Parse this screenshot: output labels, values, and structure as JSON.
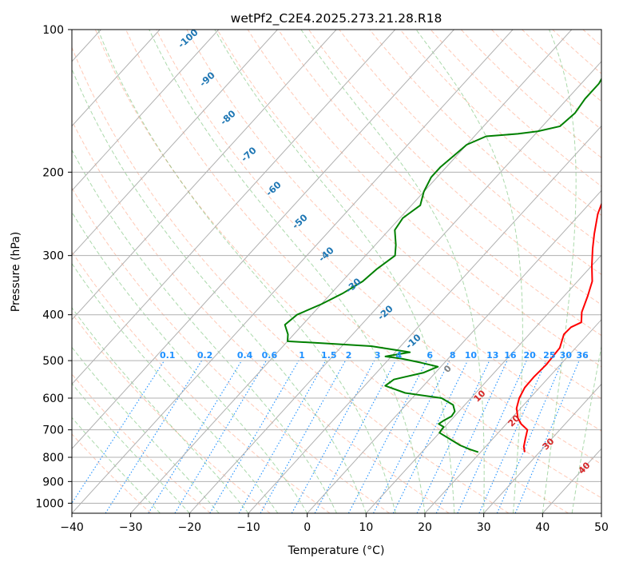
{
  "chart_data": {
    "type": "line",
    "title": "wetPf2_C2E4.2025.273.21.28.R18",
    "xlabel": "Temperature (°C)",
    "ylabel": "Pressure (hPa)",
    "xlim": [
      -40,
      50
    ],
    "ylim": [
      1050,
      100
    ],
    "y_scale": "log",
    "grid": true,
    "x_ticks": [
      "−40",
      "−30",
      "−20",
      "−10",
      "0",
      "10",
      "20",
      "30",
      "40",
      "50"
    ],
    "y_ticks": [
      "100",
      "200",
      "300",
      "400",
      "500",
      "600",
      "700",
      "800",
      "900",
      "1000"
    ],
    "isotherms_skewed": true,
    "colors": {
      "temperature": "#ff0000",
      "dewpoint": "#008000",
      "dry_adiabats": "#ff7f50",
      "moist_adiabats": "#2ca02c",
      "mixing_ratio": "#1e90ff",
      "isotherm_labels": "#1f77b4",
      "moist_labels": "#d62728",
      "grid": "#b0b0b0"
    },
    "series": [
      {
        "key": "temperature",
        "points": [
          [
            27.5,
            780
          ],
          [
            26.5,
            760
          ],
          [
            25.5,
            730
          ],
          [
            24.5,
            700
          ],
          [
            22.5,
            680
          ],
          [
            21.0,
            660
          ],
          [
            19.3,
            630
          ],
          [
            18.2,
            600
          ],
          [
            17.5,
            570
          ],
          [
            17.4,
            540
          ],
          [
            17.6,
            510
          ],
          [
            17.3,
            470
          ],
          [
            15.9,
            440
          ],
          [
            16.0,
            425
          ],
          [
            17.0,
            415
          ],
          [
            15.5,
            395
          ],
          [
            14.0,
            365
          ],
          [
            12.5,
            340
          ],
          [
            10.0,
            315
          ],
          [
            7.5,
            290
          ],
          [
            5.5,
            270
          ],
          [
            3.0,
            245
          ],
          [
            1.0,
            220
          ],
          [
            -1.0,
            200
          ],
          [
            -3.5,
            180
          ],
          [
            -6.0,
            165
          ],
          [
            -8.5,
            150
          ],
          [
            -10.0,
            138
          ],
          [
            -11.8,
            128
          ],
          [
            -12.0,
            120
          ],
          [
            -13.0,
            112
          ],
          [
            -13.2,
            106
          ],
          [
            -12.0,
            102
          ],
          [
            -11.0,
            100
          ]
        ]
      },
      {
        "key": "dewpoint",
        "points": [
          [
            19.6,
            780
          ],
          [
            17.8,
            770
          ],
          [
            15.5,
            755
          ],
          [
            12.5,
            730
          ],
          [
            10.0,
            710
          ],
          [
            9.8,
            690
          ],
          [
            8.5,
            680
          ],
          [
            8.8,
            670
          ],
          [
            9.5,
            655
          ],
          [
            9.3,
            640
          ],
          [
            8.0,
            620
          ],
          [
            5.0,
            600
          ],
          [
            -2.0,
            585
          ],
          [
            -6.5,
            565
          ],
          [
            -6.0,
            548
          ],
          [
            -2.0,
            530
          ],
          [
            -0.5,
            515
          ],
          [
            -4.0,
            505
          ],
          [
            -8.0,
            495
          ],
          [
            -11.0,
            490
          ],
          [
            -7.5,
            480
          ],
          [
            -15.0,
            466
          ],
          [
            -23.0,
            460
          ],
          [
            -30.0,
            455
          ],
          [
            -31.0,
            440
          ],
          [
            -33.0,
            420
          ],
          [
            -32.5,
            400
          ],
          [
            -30.0,
            380
          ],
          [
            -28.0,
            360
          ],
          [
            -26.5,
            340
          ],
          [
            -26.0,
            320
          ],
          [
            -25.0,
            300
          ],
          [
            -26.5,
            285
          ],
          [
            -29.0,
            265
          ],
          [
            -29.5,
            250
          ],
          [
            -28.5,
            235
          ],
          [
            -30.0,
            220
          ],
          [
            -31.0,
            205
          ],
          [
            -31.0,
            195
          ],
          [
            -30.5,
            185
          ],
          [
            -30.0,
            175
          ],
          [
            -28.0,
            168
          ],
          [
            -23.0,
            166
          ],
          [
            -20.0,
            164
          ],
          [
            -17.0,
            160
          ],
          [
            -16.5,
            150
          ],
          [
            -17.0,
            140
          ],
          [
            -17.0,
            130
          ],
          [
            -18.0,
            120
          ],
          [
            -19.0,
            112
          ],
          [
            -18.5,
            106
          ],
          [
            -17.5,
            102
          ],
          [
            -16.5,
            100
          ]
        ]
      }
    ],
    "isotherm_labels": [
      "-100",
      "-90",
      "-80",
      "-70",
      "-60",
      "-50",
      "-40",
      "-30",
      "-20",
      "-10"
    ],
    "mixing_ratio_labels": [
      "0.1",
      "0.2",
      "0.4",
      "0.6",
      "1",
      "1.5",
      "2",
      "3",
      "4",
      "6",
      "8",
      "10",
      "13",
      "16",
      "20",
      "25",
      "30",
      "36"
    ],
    "moist_adiabat_labels": [
      "0",
      "10",
      "20",
      "30",
      "40"
    ]
  }
}
